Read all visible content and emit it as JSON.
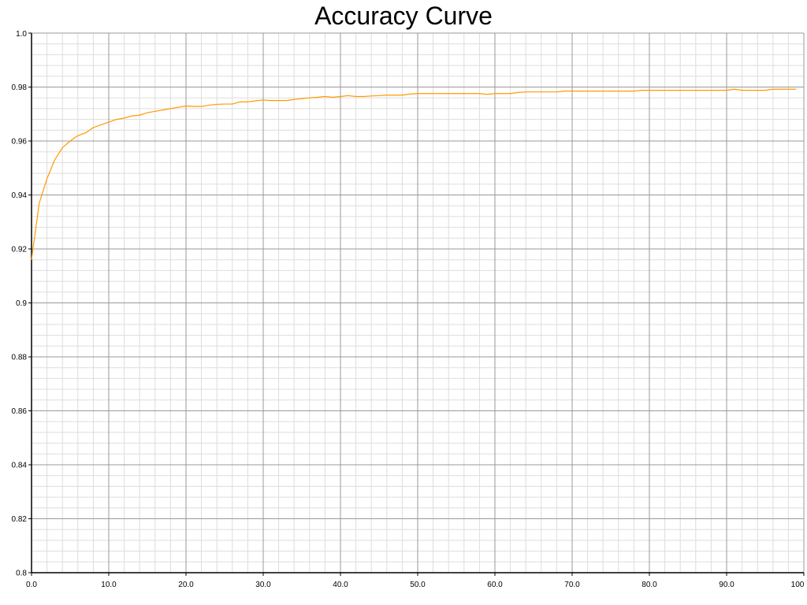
{
  "chart_data": {
    "type": "line",
    "title": "Accuracy Curve",
    "xlabel": "",
    "ylabel": "",
    "xlim": [
      0,
      100
    ],
    "ylim": [
      0.8,
      1.0
    ],
    "x_ticks": [
      0,
      10,
      20,
      30,
      40,
      50,
      60,
      70,
      80,
      90,
      100
    ],
    "x_tick_labels": [
      "0.0",
      "10.0",
      "20.0",
      "30.0",
      "40.0",
      "50.0",
      "60.0",
      "70.0",
      "80.0",
      "90.0",
      "100"
    ],
    "y_ticks": [
      0.8,
      0.82,
      0.84,
      0.86,
      0.88,
      0.9,
      0.92,
      0.94,
      0.96,
      0.98,
      1.0
    ],
    "y_tick_labels": [
      "0.8",
      "0.82",
      "0.84",
      "0.86",
      "0.88",
      "0.9",
      "0.92",
      "0.94",
      "0.96",
      "0.98",
      "1.0"
    ],
    "minor_grid_step_x": 2,
    "minor_grid_step_y": 0.004,
    "grid": true,
    "legend": "none",
    "series": [
      {
        "color": "#ff9900",
        "x": [
          0,
          1,
          2,
          3,
          4,
          5,
          6,
          7,
          8,
          9,
          10,
          11,
          12,
          13,
          14,
          15,
          16,
          17,
          18,
          19,
          20,
          21,
          22,
          23,
          24,
          25,
          26,
          27,
          28,
          29,
          30,
          31,
          32,
          33,
          34,
          35,
          36,
          37,
          38,
          39,
          40,
          41,
          42,
          43,
          44,
          45,
          46,
          47,
          48,
          49,
          50,
          51,
          52,
          53,
          54,
          55,
          56,
          57,
          58,
          59,
          60,
          61,
          62,
          63,
          64,
          65,
          66,
          67,
          68,
          69,
          70,
          71,
          72,
          73,
          74,
          75,
          76,
          77,
          78,
          79,
          80,
          81,
          82,
          83,
          84,
          85,
          86,
          87,
          88,
          89,
          90,
          91,
          92,
          93,
          94,
          95,
          96,
          97,
          98,
          99
        ],
        "y": [
          0.916,
          0.937,
          0.946,
          0.953,
          0.9575,
          0.96,
          0.962,
          0.963,
          0.965,
          0.966,
          0.967,
          0.968,
          0.9685,
          0.9693,
          0.9696,
          0.9705,
          0.971,
          0.9715,
          0.972,
          0.9725,
          0.973,
          0.9728,
          0.9728,
          0.9733,
          0.9736,
          0.9737,
          0.9737,
          0.9745,
          0.9745,
          0.9749,
          0.9752,
          0.975,
          0.975,
          0.975,
          0.9754,
          0.9757,
          0.976,
          0.9762,
          0.9765,
          0.9762,
          0.9765,
          0.9768,
          0.9765,
          0.9765,
          0.9767,
          0.9768,
          0.977,
          0.977,
          0.977,
          0.9774,
          0.9776,
          0.9776,
          0.9776,
          0.9776,
          0.9776,
          0.9776,
          0.9776,
          0.9776,
          0.9776,
          0.9773,
          0.9776,
          0.9776,
          0.9776,
          0.978,
          0.9782,
          0.9782,
          0.9782,
          0.9782,
          0.9782,
          0.9785,
          0.9785,
          0.9785,
          0.9785,
          0.9785,
          0.9785,
          0.9785,
          0.9785,
          0.9785,
          0.9785,
          0.9788,
          0.9788,
          0.9788,
          0.9788,
          0.9788,
          0.9788,
          0.9788,
          0.9788,
          0.9788,
          0.9788,
          0.9788,
          0.9788,
          0.9792,
          0.9788,
          0.9788,
          0.9788,
          0.9788,
          0.9792,
          0.9792,
          0.9792,
          0.9792
        ]
      }
    ]
  }
}
